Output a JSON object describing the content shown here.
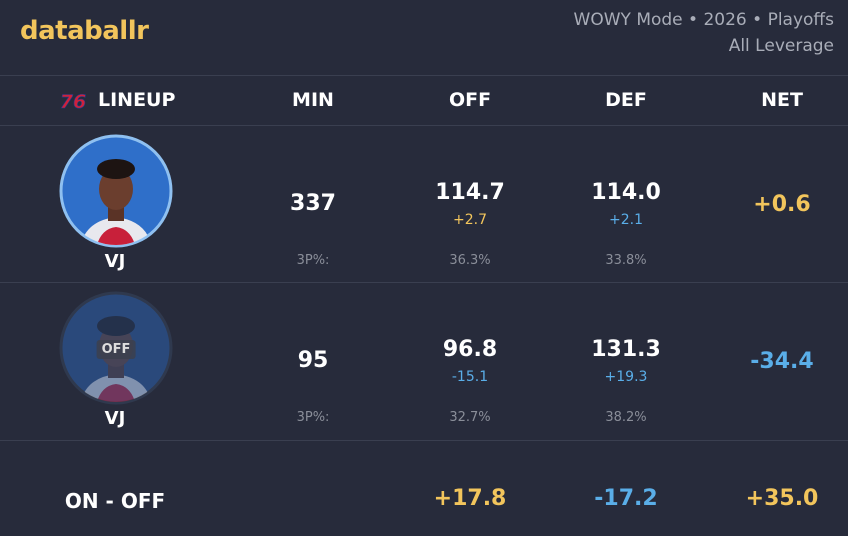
{
  "header": {
    "brand": "databallr",
    "mode": "WOWY Mode • 2026 • Playoffs",
    "leverage": "All Leverage"
  },
  "table": {
    "team_logo": "76",
    "columns": [
      "LINEUP",
      "MIN",
      "OFF",
      "DEF",
      "NET"
    ],
    "rows": [
      {
        "player": "VJ",
        "badge": null,
        "min": "337",
        "off": "114.7",
        "off_diff": "+2.7",
        "def": "114.0",
        "def_diff": "+2.1",
        "net": "+0.6",
        "shot_label": "3P%:",
        "off_3p": "36.3%",
        "def_3p": "33.8%"
      },
      {
        "player": "VJ",
        "badge": "OFF",
        "min": "95",
        "off": "96.8",
        "off_diff": "-15.1",
        "def": "131.3",
        "def_diff": "+19.3",
        "net": "-34.4",
        "shot_label": "3P%:",
        "off_3p": "32.7%",
        "def_3p": "38.2%"
      }
    ],
    "summary": {
      "label": "ON - OFF",
      "off": "+17.8",
      "def": "-17.2",
      "net": "+35.0"
    }
  }
}
